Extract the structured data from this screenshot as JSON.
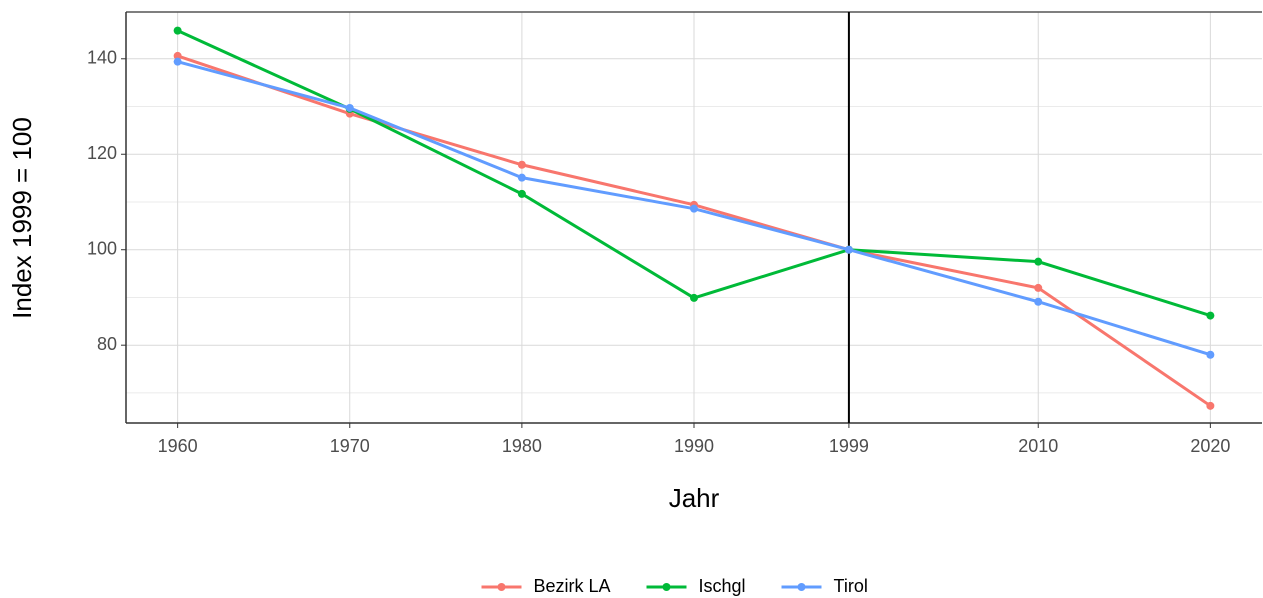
{
  "chart_data": {
    "type": "line",
    "x": [
      1960,
      1970,
      1980,
      1990,
      1999,
      2010,
      2020
    ],
    "series": [
      {
        "name": "Bezirk LA",
        "color": "#F8766D",
        "values": [
          140.6,
          128.5,
          117.8,
          109.4,
          100,
          92.0,
          67.3
        ]
      },
      {
        "name": "Ischgl",
        "color": "#00BA38",
        "values": [
          145.9,
          129.5,
          111.7,
          89.9,
          100,
          97.5,
          86.2
        ]
      },
      {
        "name": "Tirol",
        "color": "#619CFF",
        "values": [
          139.4,
          129.7,
          115.1,
          108.6,
          100,
          89.1,
          78.0
        ]
      }
    ],
    "xlabel": "Jahr",
    "ylabel": "Index 1999 = 100",
    "xlim": [
      1957,
      2023
    ],
    "xticks": [
      1960,
      1970,
      1980,
      1990,
      1999,
      2010,
      2020
    ],
    "ylim": [
      63.7,
      149.8
    ],
    "yticks": [
      80,
      100,
      120,
      140
    ],
    "yminor": [
      70,
      90,
      110,
      130
    ],
    "vline": 1999,
    "grid": true,
    "legend": "bottom"
  }
}
